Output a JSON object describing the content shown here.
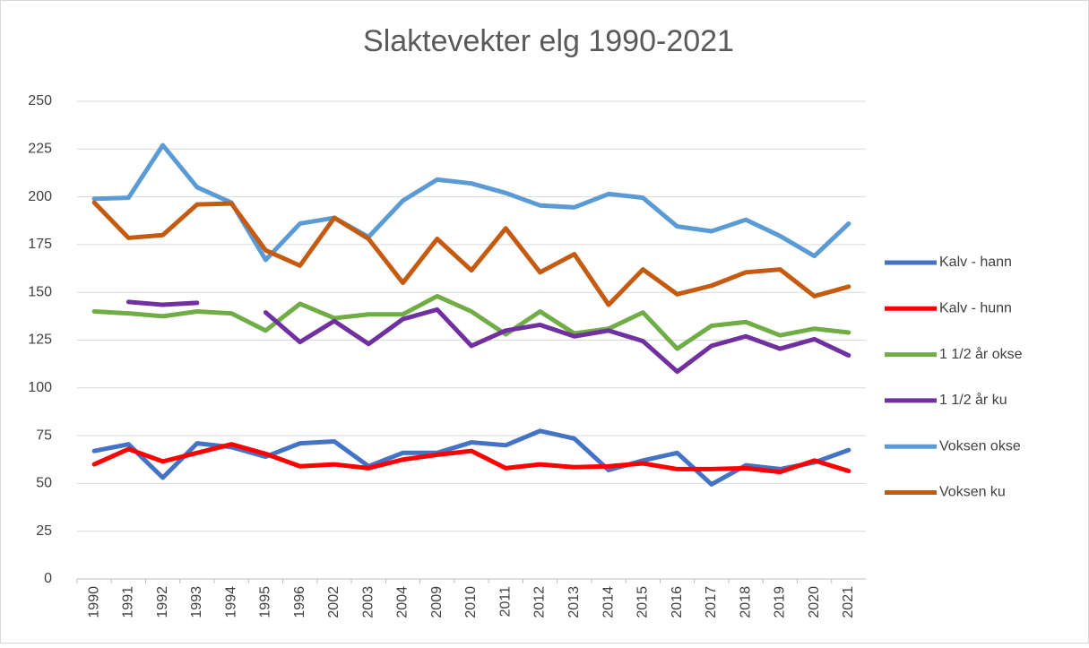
{
  "chart_data": {
    "type": "line",
    "title": "Slaktevekter elg 1990-2021",
    "categories": [
      "1990",
      "1991",
      "1992",
      "1993",
      "1994",
      "1995",
      "1996",
      "2002",
      "2003",
      "2004",
      "2009",
      "2010",
      "2011",
      "2012",
      "2013",
      "2014",
      "2015",
      "2016",
      "2017",
      "2018",
      "2019",
      "2020",
      "2021"
    ],
    "series": [
      {
        "name": "Kalv - hann",
        "color": "#4472c4",
        "values": [
          67,
          70.5,
          53,
          71,
          69,
          64,
          71,
          72,
          59,
          66,
          66,
          71.5,
          70,
          77.5,
          73.5,
          57,
          62,
          66,
          49.5,
          59.5,
          57.5,
          61,
          67.5
        ]
      },
      {
        "name": "Kalv - hunn",
        "color": "#ff0000",
        "values": [
          60,
          68,
          61.5,
          66,
          70.5,
          65.5,
          59,
          60,
          58,
          62.5,
          65,
          67,
          58,
          60,
          58.5,
          59,
          60.5,
          57.5,
          57.5,
          58,
          56,
          62,
          56.5
        ]
      },
      {
        "name": "1 1/2 år okse",
        "color": "#70ad47",
        "values": [
          140,
          139,
          137.5,
          140,
          139,
          130,
          144,
          136.5,
          138.5,
          138.5,
          148,
          140,
          128,
          140,
          128.5,
          131,
          139.5,
          120.5,
          132.5,
          134.5,
          127.5,
          131,
          129
        ]
      },
      {
        "name": "1 1/2 år ku",
        "color": "#7030a0",
        "values": [
          null,
          145,
          143.5,
          144.5,
          null,
          139.5,
          124,
          135,
          123,
          136,
          141,
          122,
          130,
          133,
          127,
          130,
          124.5,
          108.5,
          122,
          127,
          120.5,
          125.5,
          117
        ]
      },
      {
        "name": "Voksen okse",
        "color": "#5b9bd5",
        "values": [
          199,
          199.5,
          227,
          205,
          197,
          167,
          186,
          189,
          179,
          198,
          209,
          207,
          202,
          195.5,
          194.5,
          201.5,
          199.5,
          184.5,
          182,
          188,
          179.5,
          169,
          186
        ]
      },
      {
        "name": "Voksen ku",
        "color": "#c55a11",
        "values": [
          197,
          178.5,
          180,
          196,
          196.5,
          172,
          164,
          189,
          178,
          155,
          178,
          161.5,
          183.5,
          160.5,
          170,
          143.5,
          162,
          149,
          153.5,
          160.5,
          162,
          148,
          153
        ]
      }
    ],
    "ylim": [
      0,
      250
    ],
    "yticks": [
      0,
      25,
      50,
      75,
      100,
      125,
      150,
      175,
      200,
      225,
      250
    ],
    "grid": true,
    "legend": "right"
  }
}
